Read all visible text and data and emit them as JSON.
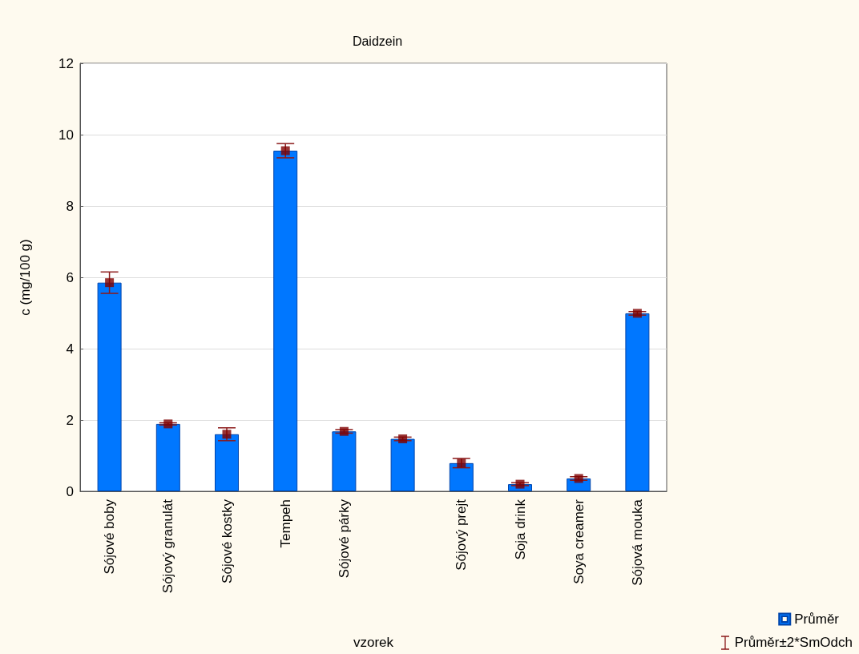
{
  "chart_data": {
    "type": "bar",
    "title": "Daidzein",
    "xlabel": "vzorek",
    "ylabel": "c (mg/100 g)",
    "categories": [
      "Sójové boby",
      "Sójový granulát",
      "Sójové kostky",
      "Tempeh",
      "Sójové párky",
      null,
      "Sójový prejt",
      "Soja drink",
      "Soya creamer",
      "Sójová mouka"
    ],
    "series": [
      {
        "name": "Průměr",
        "color": "#0077ff",
        "values": [
          5.85,
          1.89,
          1.6,
          9.55,
          1.68,
          1.47,
          0.79,
          0.2,
          0.36,
          4.99
        ],
        "errors": [
          0.3,
          0.03,
          0.18,
          0.2,
          0.05,
          0.05,
          0.13,
          0.04,
          0.05,
          0.05
        ]
      },
      {
        "type": "scatter",
        "color": "#800000",
        "values": [
          5.85,
          1.89,
          1.6,
          9.55,
          1.68,
          1.47,
          0.79,
          0.2,
          0.36,
          4.99
        ]
      }
    ],
    "ylim": [
      0,
      12
    ],
    "yticks": [
      0,
      2,
      4,
      6,
      8,
      10,
      12
    ],
    "grid": "y",
    "legend": "bottom right",
    "marker": "square",
    "annotations": [
      "Průměr±2*SmOdch"
    ]
  }
}
